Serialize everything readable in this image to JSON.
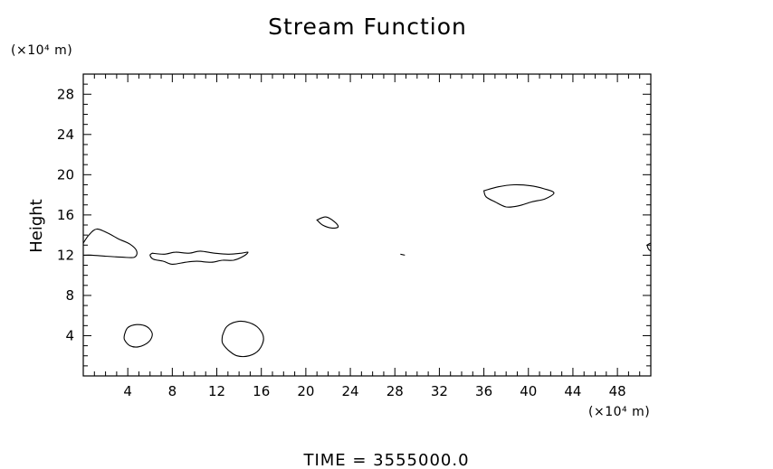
{
  "chart_data": {
    "type": "line",
    "title": "Stream Function",
    "ylabel": "Height",
    "x_unit": "(×10⁴ m)",
    "y_unit": "(×10⁴ m)",
    "footer": "TIME  =  3555000.0",
    "xlim": [
      0,
      51
    ],
    "ylim": [
      0,
      30
    ],
    "x_ticks": [
      4,
      8,
      12,
      16,
      20,
      24,
      28,
      32,
      36,
      40,
      44,
      48
    ],
    "y_ticks": [
      4,
      8,
      12,
      16,
      20,
      24,
      28
    ],
    "contours": [
      {
        "name": "contour-left-12",
        "points": [
          [
            0,
            13.2
          ],
          [
            0.5,
            14.0
          ],
          [
            1.2,
            14.6
          ],
          [
            2.2,
            14.2
          ],
          [
            3.2,
            13.6
          ],
          [
            4.2,
            13.1
          ],
          [
            4.8,
            12.4
          ],
          [
            4.6,
            11.8
          ],
          [
            3.5,
            11.8
          ],
          [
            2,
            11.9
          ],
          [
            0.8,
            12.0
          ],
          [
            0,
            12.0
          ]
        ],
        "closed": false
      },
      {
        "name": "contour-lobe-12",
        "points": [
          [
            6.2,
            12.2
          ],
          [
            7.3,
            12.1
          ],
          [
            8.3,
            12.3
          ],
          [
            9.5,
            12.2
          ],
          [
            10.5,
            12.4
          ],
          [
            11.8,
            12.2
          ],
          [
            13,
            12.1
          ],
          [
            14.2,
            12.2
          ],
          [
            14.8,
            12.3
          ],
          [
            14.4,
            11.9
          ],
          [
            13.5,
            11.5
          ],
          [
            12.5,
            11.5
          ],
          [
            11.5,
            11.3
          ],
          [
            10.2,
            11.4
          ],
          [
            9.2,
            11.3
          ],
          [
            8.0,
            11.1
          ],
          [
            7.2,
            11.4
          ],
          [
            6.3,
            11.6
          ],
          [
            6.0,
            12.0
          ],
          [
            6.2,
            12.2
          ]
        ],
        "closed": true
      },
      {
        "name": "contour-small-22",
        "points": [
          [
            21.0,
            15.5
          ],
          [
            21.8,
            15.8
          ],
          [
            22.6,
            15.3
          ],
          [
            22.9,
            14.8
          ],
          [
            22.3,
            14.7
          ],
          [
            21.5,
            15.0
          ],
          [
            21.0,
            15.5
          ]
        ],
        "closed": true
      },
      {
        "name": "contour-large-39",
        "points": [
          [
            36.0,
            18.4
          ],
          [
            37.3,
            18.8
          ],
          [
            38.7,
            19.0
          ],
          [
            40.2,
            18.9
          ],
          [
            41.4,
            18.6
          ],
          [
            42.3,
            18.2
          ],
          [
            41.5,
            17.6
          ],
          [
            40.3,
            17.3
          ],
          [
            39.1,
            16.9
          ],
          [
            38.0,
            16.8
          ],
          [
            37.0,
            17.3
          ],
          [
            36.2,
            17.8
          ],
          [
            36.0,
            18.4
          ]
        ],
        "closed": true
      },
      {
        "name": "contour-dash-28",
        "points": [
          [
            28.5,
            12.1
          ],
          [
            28.9,
            12.0
          ]
        ],
        "closed": false
      },
      {
        "name": "contour-right-edge",
        "points": [
          [
            51,
            13.2
          ],
          [
            50.7,
            13.0
          ],
          [
            50.8,
            12.6
          ],
          [
            51,
            12.4
          ]
        ],
        "closed": false
      },
      {
        "name": "contour-circle-5",
        "points": [
          [
            3.7,
            4.1
          ],
          [
            4.0,
            4.8
          ],
          [
            4.8,
            5.1
          ],
          [
            5.7,
            4.9
          ],
          [
            6.2,
            4.2
          ],
          [
            5.9,
            3.4
          ],
          [
            5.0,
            2.9
          ],
          [
            4.2,
            3.0
          ],
          [
            3.7,
            3.6
          ],
          [
            3.7,
            4.1
          ]
        ],
        "closed": true
      },
      {
        "name": "contour-circle-14",
        "points": [
          [
            12.5,
            4.0
          ],
          [
            12.9,
            4.9
          ],
          [
            13.8,
            5.4
          ],
          [
            14.9,
            5.3
          ],
          [
            15.8,
            4.7
          ],
          [
            16.2,
            3.7
          ],
          [
            15.8,
            2.6
          ],
          [
            14.9,
            2.0
          ],
          [
            13.8,
            2.0
          ],
          [
            13.0,
            2.6
          ],
          [
            12.5,
            3.3
          ],
          [
            12.5,
            4.0
          ]
        ],
        "closed": true
      }
    ]
  }
}
